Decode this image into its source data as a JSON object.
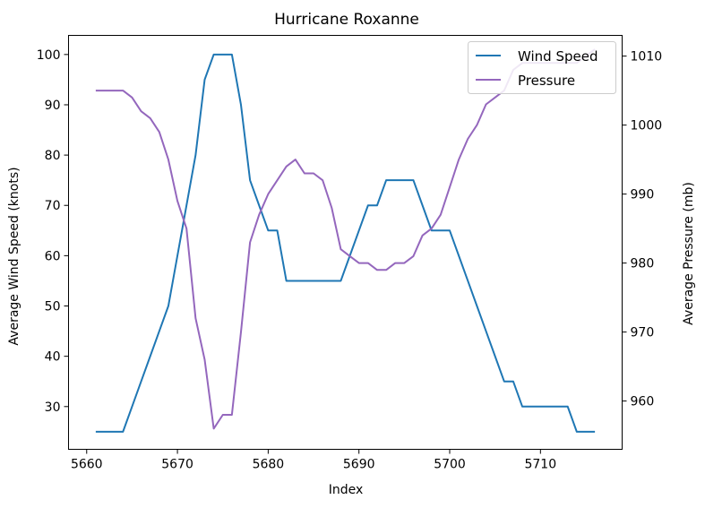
{
  "chart_data": {
    "type": "line",
    "title": "Hurricane Roxanne",
    "xlabel": "Index",
    "ylabel_left": "Average Wind Speed (knots)",
    "ylabel_right": "Average Pressure (mb)",
    "xlim": [
      5658,
      5719
    ],
    "ylim_left": [
      21.5,
      103.8
    ],
    "ylim_right": [
      953,
      1013
    ],
    "x_ticks": [
      5660,
      5670,
      5680,
      5690,
      5700,
      5710
    ],
    "y_ticks_left": [
      30,
      40,
      50,
      60,
      70,
      80,
      90,
      100
    ],
    "y_ticks_right": [
      960,
      970,
      980,
      990,
      1000,
      1010
    ],
    "legend_position": "top-right",
    "grid": false,
    "series": [
      {
        "name": "Wind Speed",
        "axis": "left",
        "color": "#1f77b4",
        "x": [
          5661,
          5662,
          5663,
          5664,
          5665,
          5666,
          5667,
          5668,
          5669,
          5670,
          5671,
          5672,
          5673,
          5674,
          5675,
          5676,
          5677,
          5678,
          5679,
          5680,
          5681,
          5682,
          5683,
          5684,
          5685,
          5686,
          5687,
          5688,
          5689,
          5690,
          5691,
          5692,
          5693,
          5694,
          5695,
          5696,
          5697,
          5698,
          5699,
          5700,
          5701,
          5702,
          5703,
          5704,
          5705,
          5706,
          5707,
          5708,
          5709,
          5710,
          5711,
          5712,
          5713,
          5714,
          5715,
          5716
        ],
        "values": [
          25,
          25,
          25,
          25,
          30,
          35,
          40,
          45,
          50,
          60,
          70,
          80,
          95,
          100,
          100,
          100,
          90,
          75,
          70,
          65,
          65,
          55,
          55,
          55,
          55,
          55,
          55,
          55,
          60,
          65,
          70,
          70,
          75,
          75,
          75,
          75,
          70,
          65,
          65,
          65,
          60,
          55,
          50,
          45,
          40,
          35,
          35,
          30,
          30,
          30,
          30,
          30,
          30,
          25,
          25,
          25
        ]
      },
      {
        "name": "Pressure",
        "axis": "right",
        "color": "#9467bd",
        "x": [
          5661,
          5662,
          5663,
          5664,
          5665,
          5666,
          5667,
          5668,
          5669,
          5670,
          5671,
          5672,
          5673,
          5674,
          5675,
          5676,
          5677,
          5678,
          5679,
          5680,
          5681,
          5682,
          5683,
          5684,
          5685,
          5686,
          5687,
          5688,
          5689,
          5690,
          5691,
          5692,
          5693,
          5694,
          5695,
          5696,
          5697,
          5698,
          5699,
          5700,
          5701,
          5702,
          5703,
          5704,
          5705,
          5706,
          5707,
          5708,
          5709,
          5710,
          5711,
          5712,
          5713,
          5714,
          5715,
          5716
        ],
        "values": [
          1005,
          1005,
          1005,
          1005,
          1004,
          1002,
          1001,
          999,
          995,
          989,
          985,
          972,
          966,
          956,
          958,
          958,
          970,
          983,
          987,
          990,
          992,
          994,
          995,
          993,
          993,
          992,
          988,
          982,
          981,
          980,
          980,
          979,
          979,
          980,
          980,
          981,
          984,
          985,
          987,
          991,
          995,
          998,
          1000,
          1003,
          1004,
          1005,
          1008,
          1009,
          1009,
          1009,
          1009,
          1009,
          1009,
          1009,
          1010,
          1011
        ]
      }
    ]
  }
}
